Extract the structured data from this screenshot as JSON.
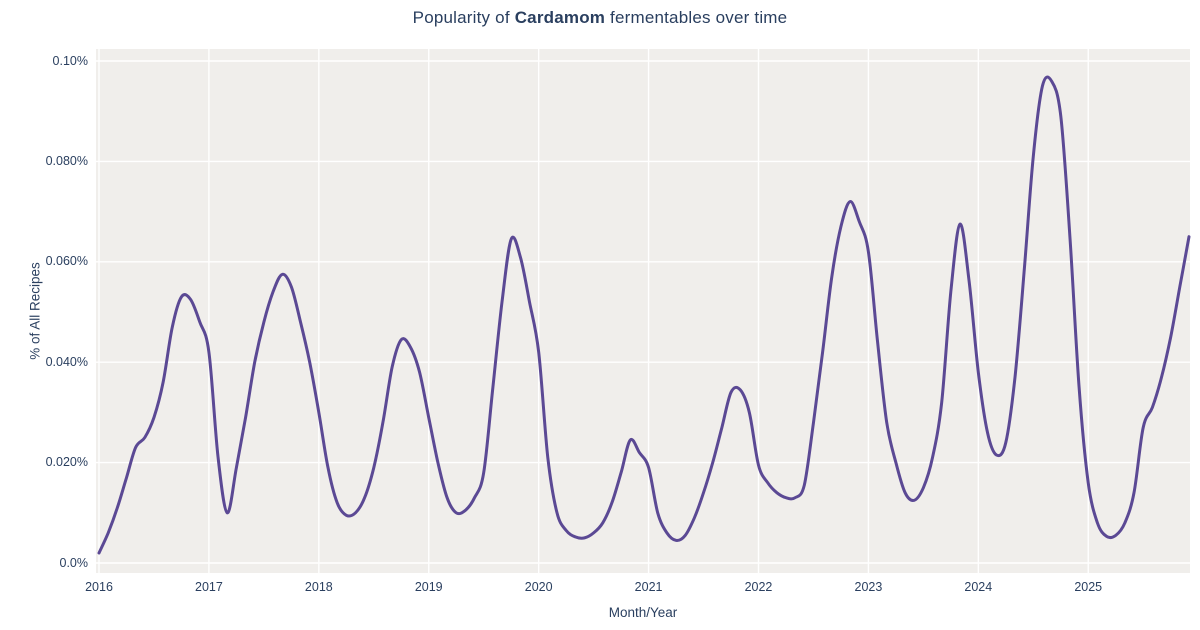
{
  "title": {
    "prefix": "Popularity of ",
    "emphasis": "Cardamom",
    "suffix": " fermentables over time"
  },
  "axes": {
    "x_label": "Month/Year",
    "y_label": "% of All Recipes"
  },
  "colors": {
    "line": "#5b4994",
    "plot_background": "#f0eeeb",
    "gridline": "#ffffff",
    "text": "#2a3f5f"
  },
  "chart_data": {
    "type": "line",
    "title": "Popularity of Cardamom fermentables over time",
    "xlabel": "Month/Year",
    "ylabel": "% of All Recipes",
    "line_shape": "spline",
    "grid": true,
    "legend_visible": false,
    "x_tick_labels": [
      "2016",
      "2017",
      "2018",
      "2019",
      "2020",
      "2021",
      "2022",
      "2023",
      "2024",
      "2025"
    ],
    "y_ticks": [
      {
        "label": "0.0%",
        "value": 0.0
      },
      {
        "label": "0.020%",
        "value": 0.02
      },
      {
        "label": "0.040%",
        "value": 0.04
      },
      {
        "label": "0.060%",
        "value": 0.06
      },
      {
        "label": "0.080%",
        "value": 0.08
      },
      {
        "label": "0.10%",
        "value": 0.1
      }
    ],
    "ylim_percent": [
      0.0,
      0.1
    ],
    "x_range": {
      "start": "2016-01",
      "end": "2025-12",
      "interval": "monthly"
    },
    "series": [
      {
        "name": "Cardamom",
        "unit": "percent_of_all_recipes",
        "years": [
          "2016",
          "2017",
          "2018",
          "2019",
          "2020",
          "2021",
          "2022",
          "2023",
          "2024",
          "2025"
        ],
        "monthly_values_by_year": {
          "2016": [
            0.002,
            0.006,
            0.011,
            0.017,
            0.023,
            0.025,
            0.029,
            0.036,
            0.047,
            0.053,
            0.0525,
            0.048
          ],
          "2017": [
            0.042,
            0.021,
            0.01,
            0.019,
            0.029,
            0.04,
            0.048,
            0.054,
            0.0575,
            0.055,
            0.048,
            0.04
          ],
          "2018": [
            0.03,
            0.019,
            0.012,
            0.0095,
            0.01,
            0.013,
            0.019,
            0.028,
            0.039,
            0.0445,
            0.043,
            0.038
          ],
          "2019": [
            0.029,
            0.02,
            0.013,
            0.01,
            0.0105,
            0.013,
            0.018,
            0.035,
            0.052,
            0.0645,
            0.061,
            0.052
          ],
          "2020": [
            0.042,
            0.021,
            0.01,
            0.0065,
            0.0052,
            0.005,
            0.006,
            0.008,
            0.012,
            0.018,
            0.0245,
            0.022
          ],
          "2021": [
            0.019,
            0.01,
            0.006,
            0.0045,
            0.0055,
            0.009,
            0.014,
            0.02,
            0.027,
            0.034,
            0.0345,
            0.03
          ],
          "2022": [
            0.0195,
            0.016,
            0.014,
            0.013,
            0.013,
            0.0155,
            0.028,
            0.042,
            0.057,
            0.067,
            0.072,
            0.068
          ],
          "2023": [
            0.062,
            0.044,
            0.028,
            0.02,
            0.014,
            0.0125,
            0.015,
            0.021,
            0.032,
            0.054,
            0.0675,
            0.056
          ],
          "2024": [
            0.038,
            0.026,
            0.0215,
            0.024,
            0.037,
            0.058,
            0.081,
            0.095,
            0.096,
            0.089,
            0.065,
            0.035
          ],
          "2025": [
            0.016,
            0.008,
            0.0053,
            0.0055,
            0.008,
            0.014,
            0.027,
            0.031,
            0.037,
            0.045,
            0.055,
            0.065
          ]
        }
      }
    ]
  }
}
